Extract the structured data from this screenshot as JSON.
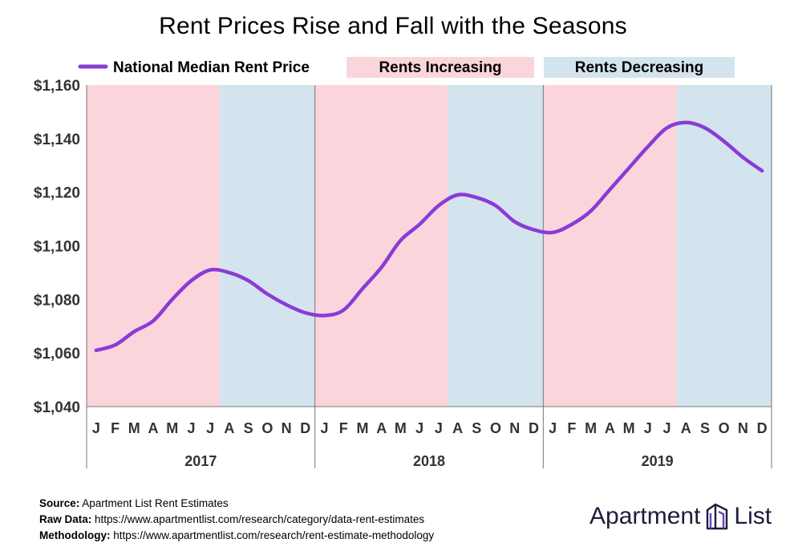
{
  "title": "Rent Prices Rise and Fall with the Seasons",
  "legend": {
    "line_label": "National Median Rent Price",
    "increasing_label": "Rents Increasing",
    "decreasing_label": "Rents Decreasing"
  },
  "colors": {
    "line": "#8a3bd6",
    "increasing": "#fbd5dc",
    "decreasing": "#d3e4ee",
    "text": "#333333",
    "brand": "#1d1d3a",
    "brand_accent": "#6a3fc5"
  },
  "chart_data": {
    "type": "line",
    "years": [
      "2017",
      "2018",
      "2019"
    ],
    "month_ticks": [
      "J",
      "F",
      "M",
      "A",
      "M",
      "J",
      "J",
      "A",
      "S",
      "O",
      "N",
      "D"
    ],
    "y_ticks": [
      "$1,040",
      "$1,060",
      "$1,080",
      "$1,100",
      "$1,120",
      "$1,140",
      "$1,160"
    ],
    "ylim": [
      1040,
      1160
    ],
    "series": [
      {
        "name": "National Median Rent Price",
        "values": [
          1061,
          1063,
          1068,
          1072,
          1080,
          1087,
          1091,
          1090,
          1087,
          1082,
          1078,
          1075,
          1074,
          1076,
          1084,
          1092,
          1102,
          1108,
          1115,
          1119,
          1118,
          1115,
          1109,
          1106,
          1105,
          1108,
          1113,
          1121,
          1129,
          1137,
          1144,
          1146,
          1144,
          1139,
          1133,
          1128
        ]
      }
    ],
    "shaded_regions": [
      {
        "type": "increasing",
        "start_month": 1,
        "end_month": 7
      },
      {
        "type": "decreasing",
        "start_month": 8,
        "end_month": 13
      },
      {
        "type": "increasing",
        "start_month": 13,
        "end_month": 19
      },
      {
        "type": "decreasing",
        "start_month": 20,
        "end_month": 25
      },
      {
        "type": "increasing",
        "start_month": 25,
        "end_month": 31
      },
      {
        "type": "decreasing",
        "start_month": 32,
        "end_month": 36
      }
    ],
    "grid": false,
    "legend_position": "top"
  },
  "footer": {
    "source_label": "Source:",
    "source_text": " Apartment List Rent Estimates",
    "raw_label": "Raw Data:",
    "raw_text": " https://www.apartmentlist.com/research/category/data-rent-estimates",
    "method_label": "Methodology:",
    "method_text": " https://www.apartmentlist.com/research/rent-estimate-methodology"
  },
  "brand": {
    "left": "Apartment",
    "right": "List",
    "logo_icon": "building-icon"
  }
}
